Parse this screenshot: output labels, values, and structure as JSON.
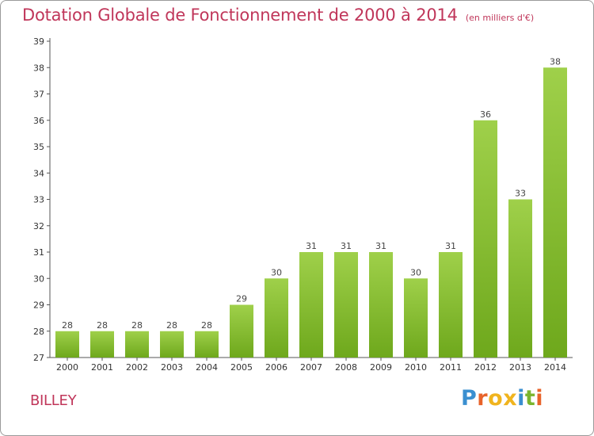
{
  "header": {
    "title": "Dotation Globale de Fonctionnement de 2000 à 2014",
    "subtitle": "(en milliers d'€)"
  },
  "footer": {
    "commune": "BILLEY",
    "logo_text": "Proxiti",
    "logo_colors": [
      "#3a8fd0",
      "#e8632a",
      "#f0b41e",
      "#f0b41e",
      "#3a8fd0",
      "#7ab52e",
      "#e8632a"
    ]
  },
  "colors": {
    "title": "#c0365a",
    "bar_light": "#9fd04a",
    "bar_dark": "#6ea81c"
  },
  "chart_data": {
    "type": "bar",
    "categories": [
      "2000",
      "2001",
      "2002",
      "2003",
      "2004",
      "2005",
      "2006",
      "2007",
      "2008",
      "2009",
      "2010",
      "2011",
      "2012",
      "2013",
      "2014"
    ],
    "values": [
      28,
      28,
      28,
      28,
      28,
      29,
      30,
      31,
      31,
      31,
      30,
      31,
      36,
      33,
      38
    ],
    "title": "Dotation Globale de Fonctionnement de 2000 à 2014",
    "subtitle": "(en milliers d'€)",
    "xlabel": "",
    "ylabel": "",
    "ylim": [
      27,
      39
    ],
    "yticks": [
      27,
      28,
      29,
      30,
      31,
      32,
      33,
      34,
      35,
      36,
      37,
      38,
      39
    ],
    "grid": false,
    "legend": "none"
  }
}
